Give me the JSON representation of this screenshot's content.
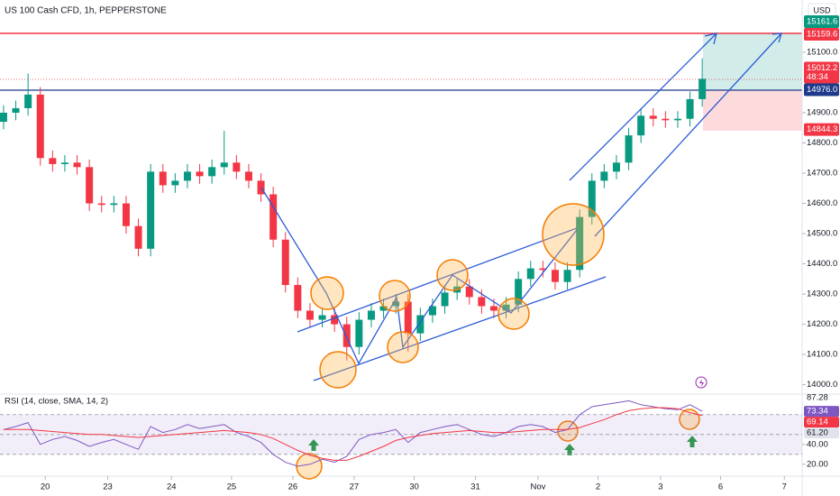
{
  "header": {
    "title": "US 100 Cash CFD, 1h, PEPPERSTONE",
    "currency": "USD"
  },
  "chart_data": [
    {
      "type": "candlestick",
      "up_color": "#089981",
      "down_color": "#f23645",
      "x": [
        0,
        1,
        2,
        3,
        4,
        5,
        6,
        7,
        8,
        9,
        10,
        11,
        12,
        13,
        14,
        15,
        16,
        17,
        18,
        19,
        20,
        21,
        22,
        23,
        24,
        25,
        26,
        27,
        28,
        29,
        30,
        31,
        32,
        33,
        34,
        35,
        36,
        37,
        38,
        39,
        40,
        41,
        42,
        43,
        44,
        45,
        46,
        47,
        48,
        49,
        50,
        51,
        52,
        53,
        54,
        55,
        56,
        57
      ],
      "open": [
        14870,
        14900,
        14915,
        14960,
        14750,
        14730,
        14735,
        14720,
        14600,
        14595,
        14600,
        14525,
        14450,
        14705,
        14660,
        14675,
        14705,
        14690,
        14720,
        14735,
        14705,
        14675,
        14630,
        14480,
        14330,
        14245,
        14215,
        14230,
        14200,
        14125,
        14215,
        14245,
        14260,
        14275,
        14170,
        14230,
        14260,
        14305,
        14325,
        14290,
        14260,
        14245,
        14265,
        14350,
        14385,
        14380,
        14340,
        14380,
        14555,
        14675,
        14705,
        14735,
        14825,
        14890,
        14880,
        14875,
        14880,
        14945
      ],
      "close": [
        14900,
        14915,
        14960,
        14750,
        14730,
        14735,
        14720,
        14600,
        14595,
        14600,
        14525,
        14450,
        14705,
        14660,
        14675,
        14705,
        14690,
        14720,
        14735,
        14705,
        14675,
        14630,
        14480,
        14330,
        14245,
        14215,
        14230,
        14200,
        14125,
        14215,
        14245,
        14260,
        14275,
        14170,
        14230,
        14260,
        14305,
        14325,
        14290,
        14260,
        14245,
        14265,
        14350,
        14385,
        14380,
        14340,
        14380,
        14555,
        14675,
        14705,
        14735,
        14825,
        14890,
        14880,
        14875,
        14880,
        14945,
        15012.2
      ],
      "high": [
        14925,
        14940,
        15030,
        14985,
        14775,
        14760,
        14760,
        14745,
        14625,
        14625,
        14625,
        14550,
        14730,
        14730,
        14700,
        14730,
        14730,
        14745,
        14840,
        14760,
        14730,
        14700,
        14655,
        14505,
        14355,
        14270,
        14255,
        14255,
        14225,
        14240,
        14270,
        14285,
        14300,
        14300,
        14255,
        14285,
        14330,
        14350,
        14350,
        14315,
        14285,
        14290,
        14375,
        14410,
        14410,
        14405,
        14405,
        14580,
        14700,
        14730,
        14760,
        14850,
        14915,
        14915,
        14905,
        14905,
        14970,
        15080
      ],
      "low": [
        14845,
        14875,
        14890,
        14725,
        14705,
        14705,
        14695,
        14575,
        14570,
        14570,
        14500,
        14425,
        14425,
        14635,
        14635,
        14650,
        14665,
        14665,
        14695,
        14680,
        14650,
        14605,
        14455,
        14305,
        14220,
        14190,
        14190,
        14175,
        14080,
        14100,
        14190,
        14220,
        14235,
        14110,
        14145,
        14205,
        14235,
        14280,
        14265,
        14235,
        14220,
        14220,
        14240,
        14325,
        14355,
        14315,
        14315,
        14355,
        14530,
        14650,
        14680,
        14710,
        14800,
        14855,
        14850,
        14850,
        14855,
        14920
      ],
      "xlim": [
        -0.29,
        65.15
      ],
      "ylim": [
        13969,
        15273
      ],
      "yticks": [
        {
          "value": 14000,
          "label": "14000.0"
        },
        {
          "value": 14100,
          "label": "14100.0"
        },
        {
          "value": 14200,
          "label": "14200.0"
        },
        {
          "value": 14300,
          "label": "14300.0"
        },
        {
          "value": 14400,
          "label": "14400.0"
        },
        {
          "value": 14500,
          "label": "14500.0"
        },
        {
          "value": 14600,
          "label": "14600.0"
        },
        {
          "value": 14700,
          "label": "14700.0"
        },
        {
          "value": 14800,
          "label": "14800.0"
        },
        {
          "value": 14900,
          "label": "14900.0"
        },
        {
          "value": 15100,
          "label": "15100.0"
        }
      ],
      "price_labels": [
        {
          "value": 15161.6,
          "label": "15161.6",
          "color": "#089981"
        },
        {
          "value": 15159.6,
          "label": "15159.6",
          "color": "#f23645"
        },
        {
          "value": 15012.2,
          "label": "15012.2",
          "sub": "48:34",
          "color": "#f23645"
        },
        {
          "value": 14976,
          "label": "14976.0",
          "color": "#1e3a8a"
        },
        {
          "value": 14844.3,
          "label": "14844.3",
          "color": "#f23645"
        }
      ]
    },
    {
      "type": "line",
      "title": "RSI (14, close, SMA, 14, 2)",
      "x": [
        0,
        1,
        2,
        3,
        4,
        5,
        6,
        7,
        8,
        9,
        10,
        11,
        12,
        13,
        14,
        15,
        16,
        17,
        18,
        19,
        20,
        21,
        22,
        23,
        24,
        25,
        26,
        27,
        28,
        29,
        30,
        31,
        32,
        33,
        34,
        35,
        36,
        37,
        38,
        39,
        40,
        41,
        42,
        43,
        44,
        45,
        46,
        47,
        48,
        49,
        50,
        51,
        52,
        53,
        54,
        55,
        56,
        57
      ],
      "series": [
        {
          "color": "#7e57c2",
          "values": [
            55,
            58,
            62,
            40,
            45,
            48,
            44,
            38,
            42,
            45,
            40,
            35,
            58,
            52,
            55,
            60,
            56,
            58,
            60,
            52,
            48,
            42,
            30,
            22,
            18,
            20,
            25,
            22,
            28,
            45,
            50,
            52,
            55,
            42,
            52,
            55,
            58,
            60,
            55,
            50,
            48,
            52,
            58,
            60,
            58,
            52,
            55,
            70,
            78,
            80,
            82,
            84,
            80,
            78,
            76,
            75,
            80,
            73.34
          ]
        },
        {
          "color": "#f23645",
          "values": [
            55,
            55,
            55,
            54,
            53,
            52,
            51,
            50,
            50,
            49,
            48,
            47,
            48,
            49,
            50,
            51,
            52,
            53,
            54,
            53,
            52,
            50,
            46,
            40,
            34,
            29,
            26,
            24,
            24,
            28,
            33,
            38,
            44,
            47,
            49,
            51,
            52,
            53,
            54,
            53,
            52,
            52,
            53,
            54,
            55,
            55,
            55,
            57,
            61,
            65,
            70,
            74,
            76,
            77,
            77,
            76,
            72,
            69.14
          ]
        }
      ],
      "bands": [
        70,
        50,
        30
      ],
      "xlim": [
        -0.29,
        65.15
      ],
      "ylim": [
        8,
        89.8
      ],
      "yticks": [
        {
          "value": 40,
          "label": "40.00"
        },
        {
          "value": 20,
          "label": "20.00"
        }
      ],
      "value_labels": [
        {
          "value": 87.28,
          "label": "87.28",
          "color": null,
          "text_color": "#131722"
        },
        {
          "value": 73.34,
          "label": "73.34",
          "color": "#7e57c2",
          "text_color": "#ffffff"
        },
        {
          "value": 69.14,
          "label": "69.14",
          "color": "#f23645",
          "text_color": "#ffffff"
        },
        {
          "value": 61.2,
          "label": "61.20",
          "color": "#e0e3eb",
          "text_color": "#131722"
        }
      ],
      "xticks": [
        {
          "value": 3.4,
          "label": "20"
        },
        {
          "value": 8.5,
          "label": "23"
        },
        {
          "value": 13.7,
          "label": "24"
        },
        {
          "value": 18.6,
          "label": "25"
        },
        {
          "value": 23.6,
          "label": "26"
        },
        {
          "value": 28.6,
          "label": "27"
        },
        {
          "value": 33.5,
          "label": "30"
        },
        {
          "value": 38.5,
          "label": "31"
        },
        {
          "value": 43.6,
          "label": "Nov"
        },
        {
          "value": 48.5,
          "label": "2"
        },
        {
          "value": 53.6,
          "label": "3"
        },
        {
          "value": 58.5,
          "label": "6"
        },
        {
          "value": 63.7,
          "label": "7"
        }
      ]
    }
  ]
}
